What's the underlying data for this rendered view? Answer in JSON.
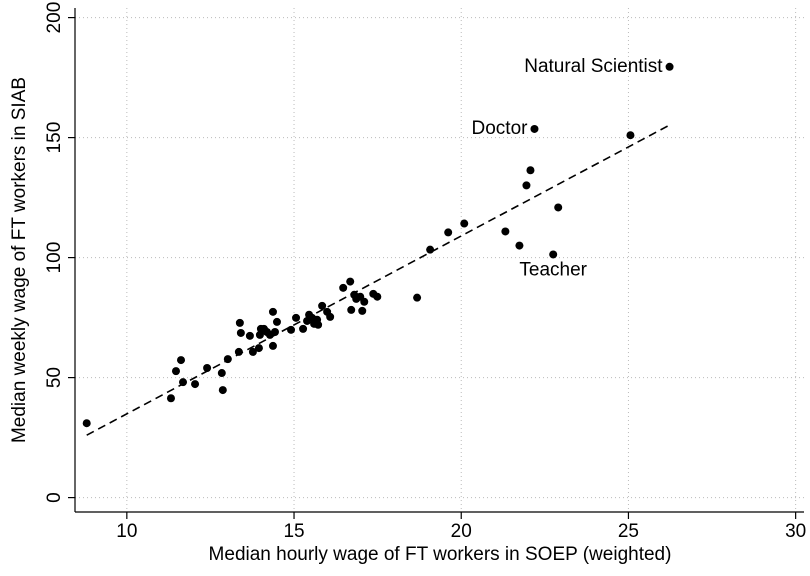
{
  "chart_data": {
    "type": "scatter",
    "x_label": "Median hourly wage of FT workers in SOEP (weighted)",
    "y_label": "Median weekly wage of FT workers in SIAB",
    "x": [
      8.8,
      11.32,
      11.47,
      11.62,
      11.68,
      12.04,
      12.4,
      12.84,
      12.87,
      13.02,
      13.35,
      13.38,
      13.41,
      13.68,
      13.77,
      13.95,
      13.98,
      14.01,
      14.1,
      14.19,
      14.28,
      14.37,
      14.37,
      14.43,
      14.49,
      14.91,
      15.06,
      15.27,
      15.39,
      15.45,
      15.54,
      15.6,
      15.69,
      15.72,
      15.84,
      15.99,
      16.08,
      16.47,
      16.68,
      16.71,
      16.8,
      16.86,
      16.98,
      17.04,
      17.1,
      17.37,
      17.49,
      18.68,
      19.07,
      19.61,
      20.09,
      21.32,
      21.74,
      21.95,
      22.07,
      22.19,
      22.75,
      22.9,
      25.06,
      26.23
    ],
    "values": [
      31.0,
      41.4,
      52.7,
      57.3,
      48.1,
      47.3,
      54.0,
      51.9,
      44.8,
      57.7,
      60.7,
      72.8,
      68.6,
      67.4,
      60.7,
      62.3,
      67.8,
      70.3,
      70.3,
      69.0,
      67.8,
      63.2,
      77.4,
      69.0,
      73.2,
      69.9,
      74.9,
      70.3,
      73.6,
      76.2,
      74.9,
      72.4,
      74.1,
      72.0,
      79.9,
      77.4,
      75.3,
      87.4,
      90.0,
      78.2,
      84.5,
      82.8,
      83.7,
      77.8,
      81.6,
      84.9,
      83.7,
      83.3,
      103.3,
      110.5,
      114.2,
      110.9,
      105.0,
      130.1,
      136.4,
      153.6,
      101.3,
      120.9,
      151.0,
      179.5
    ],
    "color": "#000000",
    "fit_line": {
      "x": [
        8.8,
        26.2
      ],
      "values": [
        26,
        155
      ],
      "color": "#000000",
      "dashed": true
    },
    "annotations": [
      {
        "text": "Natural Scientist",
        "x": 26.23,
        "y": 179.5,
        "position": "left"
      },
      {
        "text": "Doctor",
        "x": 22.19,
        "y": 153.6,
        "position": "left"
      },
      {
        "text": "Teacher",
        "x": 22.75,
        "y": 101.3,
        "position": "below"
      }
    ],
    "xlim": [
      8.45,
      30.25
    ],
    "ylim": [
      -6,
      204
    ],
    "xticks": [
      10,
      15,
      20,
      25,
      30
    ],
    "yticks": [
      0,
      50,
      100,
      150,
      200
    ],
    "grid": true
  }
}
